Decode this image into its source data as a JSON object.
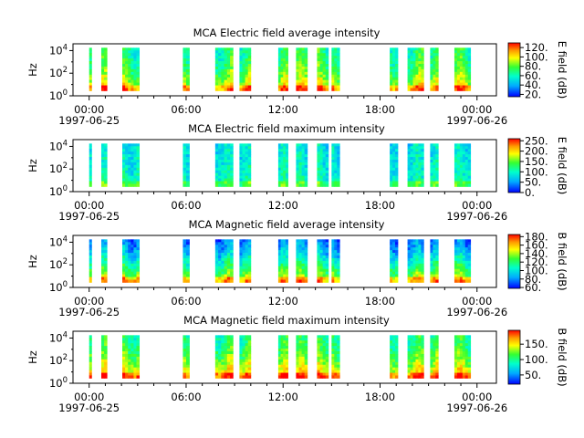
{
  "chart_data": [
    {
      "type": "heatmap",
      "title": "MCA  Electric field average intensity",
      "ylabel": "Hz",
      "colorbar_label": "E field (dB)",
      "colorbar_ticks": [
        "20.",
        "40.",
        "60.",
        "80.",
        "100.",
        "120."
      ],
      "colorbar_values": [
        20,
        40,
        60,
        80,
        100,
        120
      ],
      "colorbar_range": [
        15,
        130
      ],
      "profile": "efield",
      "ylim_exp": [
        0,
        4.6
      ]
    },
    {
      "type": "heatmap",
      "title": "MCA  Electric field maximum intensity",
      "ylabel": "Hz",
      "colorbar_label": "E field (dB)",
      "colorbar_ticks": [
        "0.",
        "50.",
        "100.",
        "150.",
        "200.",
        "250."
      ],
      "colorbar_values": [
        0,
        50,
        100,
        150,
        200,
        250
      ],
      "colorbar_range": [
        0,
        260
      ],
      "profile": "efieldmax",
      "ylim_exp": [
        0,
        4.6
      ]
    },
    {
      "type": "heatmap",
      "title": "MCA  Magnetic field average intensity",
      "ylabel": "Hz",
      "colorbar_label": "B field (dB)",
      "colorbar_ticks": [
        "60.",
        "80.",
        "100.",
        "120.",
        "140.",
        "160.",
        "180."
      ],
      "colorbar_values": [
        60,
        80,
        100,
        120,
        140,
        160,
        180
      ],
      "colorbar_range": [
        58,
        185
      ],
      "profile": "bfield",
      "ylim_exp": [
        0,
        4.6
      ]
    },
    {
      "type": "heatmap",
      "title": "MCA  Magnetic field maximum intensity",
      "ylabel": "Hz",
      "colorbar_label": "B field (dB)",
      "colorbar_ticks": [
        "50.",
        "100.",
        "150."
      ],
      "colorbar_values": [
        50,
        100,
        150
      ],
      "colorbar_range": [
        20,
        195
      ],
      "profile": "bfieldmax",
      "ylim_exp": [
        0,
        4.6
      ]
    }
  ],
  "shared": {
    "y_base": "10",
    "y_tick_exponents": [
      "0",
      "2",
      "4"
    ],
    "x_tick_hours": [
      0,
      6,
      12,
      18,
      24
    ],
    "x_tick_labels": [
      "00:00",
      "06:00",
      "12:00",
      "18:00",
      "00:00"
    ],
    "x_date_labels": [
      "1997-06-25",
      "1997-06-26"
    ],
    "x_range_hours": [
      -1,
      25.2
    ],
    "data_segments_hours": [
      [
        0,
        0.15
      ],
      [
        0.75,
        1.1
      ],
      [
        2.05,
        3.1
      ],
      [
        5.8,
        6.2
      ],
      [
        7.8,
        8.9
      ],
      [
        9.3,
        10.0
      ],
      [
        11.7,
        12.3
      ],
      [
        12.8,
        13.5
      ],
      [
        14.1,
        14.8
      ],
      [
        15.0,
        15.5
      ],
      [
        18.6,
        19.1
      ],
      [
        19.7,
        20.7
      ],
      [
        21.1,
        21.6
      ],
      [
        22.6,
        23.6
      ]
    ]
  }
}
